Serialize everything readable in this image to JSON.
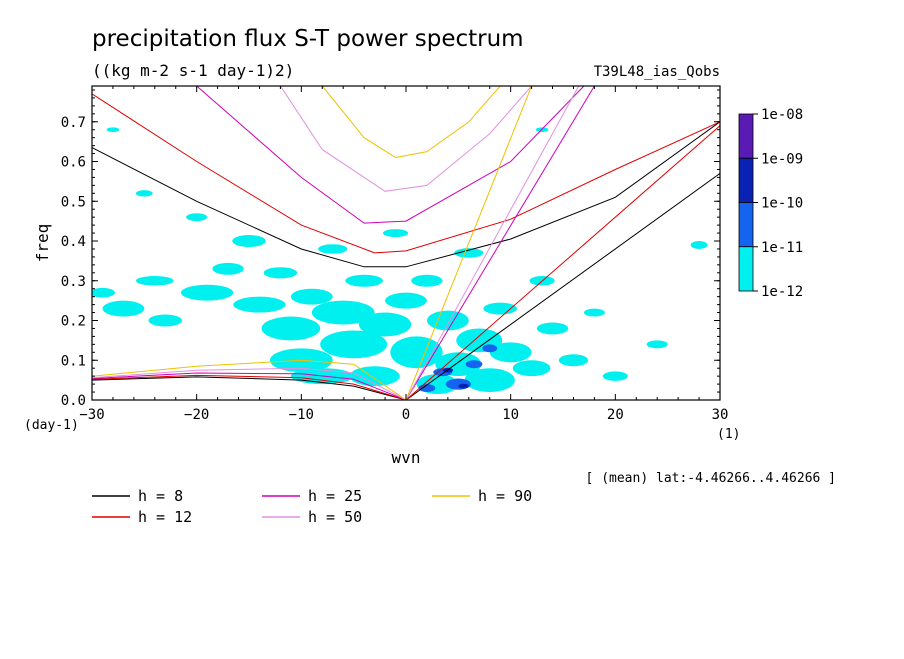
{
  "chart_data": {
    "type": "heatmap",
    "title": "precipitation flux S-T power spectrum",
    "subtitle": "((kg m-2 s-1 day-1)2)",
    "run_label": "T39L48_ias_Qobs",
    "xlabel": "wvn",
    "ylabel": "freq",
    "x_unit": "(1)",
    "y_unit": "(day-1)",
    "xlim": [
      -30,
      30
    ],
    "ylim": [
      0,
      0.79
    ],
    "xticks": [
      -30,
      -20,
      -10,
      0,
      10,
      20,
      30
    ],
    "yticks": [
      0.0,
      0.1,
      0.2,
      0.3,
      0.4,
      0.5,
      0.6,
      0.7
    ],
    "ytick_labels": [
      "0.0",
      "0.1",
      "0.2",
      "0.3",
      "0.4",
      "0.5",
      "0.6",
      "0.7"
    ],
    "footnote": "[ (mean) lat:-4.46266..4.46266 ]",
    "colorbar": {
      "labels": [
        "1e-08",
        "1e-09",
        "1e-10",
        "1e-11",
        "1e-12"
      ],
      "colors": [
        "#5a1ab4",
        "#0a22b4",
        "#1464f0",
        "#00f0f0"
      ]
    },
    "curves": [
      {
        "label": "h =  8",
        "h": 8,
        "color": "#000000"
      },
      {
        "label": "h = 12",
        "h": 12,
        "color": "#e00000"
      },
      {
        "label": "h = 25",
        "h": 25,
        "color": "#d000b8"
      },
      {
        "label": "h = 50",
        "h": 50,
        "color": "#e090e0"
      },
      {
        "label": "h = 90",
        "h": 90,
        "color": "#f0c000"
      }
    ],
    "kelvin_curves": [
      {
        "h": 8,
        "color": "#000000",
        "points": [
          [
            0,
            0
          ],
          [
            30,
            0.57
          ]
        ]
      },
      {
        "h": 12,
        "color": "#e00000",
        "points": [
          [
            0,
            0
          ],
          [
            30,
            0.69
          ]
        ]
      },
      {
        "h": 25,
        "color": "#d000b8",
        "points": [
          [
            0,
            0
          ],
          [
            18,
            0.79
          ]
        ]
      },
      {
        "h": 50,
        "color": "#e090e0",
        "points": [
          [
            0,
            0
          ],
          [
            16.5,
            0.79
          ]
        ]
      },
      {
        "h": 90,
        "color": "#f0c000",
        "points": [
          [
            0,
            0
          ],
          [
            12,
            0.79
          ]
        ]
      }
    ],
    "ig_curves": [
      {
        "h": 8,
        "color": "#000000",
        "points": [
          [
            -30,
            0.635
          ],
          [
            -20,
            0.5
          ],
          [
            -10,
            0.38
          ],
          [
            -4,
            0.335
          ],
          [
            0,
            0.335
          ],
          [
            10,
            0.405
          ],
          [
            20,
            0.51
          ],
          [
            30,
            0.7
          ]
        ]
      },
      {
        "h": 12,
        "color": "#e00000",
        "points": [
          [
            -30,
            0.77
          ],
          [
            -20,
            0.6
          ],
          [
            -10,
            0.44
          ],
          [
            -3,
            0.37
          ],
          [
            0,
            0.375
          ],
          [
            10,
            0.455
          ],
          [
            20,
            0.58
          ],
          [
            30,
            0.7
          ]
        ]
      },
      {
        "h": 25,
        "color": "#d000b8",
        "points": [
          [
            -20,
            0.79
          ],
          [
            -10,
            0.56
          ],
          [
            -4,
            0.445
          ],
          [
            0,
            0.45
          ],
          [
            10,
            0.6
          ],
          [
            17,
            0.79
          ]
        ]
      },
      {
        "h": 50,
        "color": "#e090e0",
        "points": [
          [
            -12,
            0.79
          ],
          [
            -8,
            0.63
          ],
          [
            -2,
            0.525
          ],
          [
            2,
            0.54
          ],
          [
            8,
            0.67
          ],
          [
            12,
            0.79
          ]
        ]
      },
      {
        "h": 90,
        "color": "#f0c000",
        "points": [
          [
            -8,
            0.79
          ],
          [
            -4,
            0.66
          ],
          [
            -1,
            0.61
          ],
          [
            2,
            0.625
          ],
          [
            6,
            0.7
          ],
          [
            9,
            0.79
          ]
        ]
      }
    ],
    "rossby_curves": [
      {
        "h": 8,
        "color": "#000000",
        "points": [
          [
            -30,
            0.05
          ],
          [
            -20,
            0.058
          ],
          [
            -10,
            0.05
          ],
          [
            -5,
            0.035
          ],
          [
            0,
            0
          ]
        ]
      },
      {
        "h": 12,
        "color": "#e00000",
        "points": [
          [
            -30,
            0.052
          ],
          [
            -20,
            0.062
          ],
          [
            -10,
            0.056
          ],
          [
            -5,
            0.04
          ],
          [
            0,
            0
          ]
        ]
      },
      {
        "h": 25,
        "color": "#d000b8",
        "points": [
          [
            -30,
            0.054
          ],
          [
            -20,
            0.068
          ],
          [
            -10,
            0.066
          ],
          [
            -5,
            0.052
          ],
          [
            0,
            0
          ]
        ]
      },
      {
        "h": 50,
        "color": "#e090e0",
        "points": [
          [
            -30,
            0.056
          ],
          [
            -20,
            0.075
          ],
          [
            -10,
            0.08
          ],
          [
            -5,
            0.068
          ],
          [
            0,
            0
          ]
        ]
      },
      {
        "h": 90,
        "color": "#f0c000",
        "points": [
          [
            -30,
            0.06
          ],
          [
            -20,
            0.085
          ],
          [
            -10,
            0.1
          ],
          [
            -5,
            0.09
          ],
          [
            0,
            0
          ]
        ]
      }
    ],
    "contour_blobs": [
      {
        "x": -29,
        "y": 0.27,
        "rx": 1.2,
        "ry": 0.012,
        "level": 4
      },
      {
        "x": -27,
        "y": 0.23,
        "rx": 2.0,
        "ry": 0.02,
        "level": 4
      },
      {
        "x": -24,
        "y": 0.3,
        "rx": 1.8,
        "ry": 0.012,
        "level": 4
      },
      {
        "x": -23,
        "y": 0.2,
        "rx": 1.6,
        "ry": 0.015,
        "level": 4
      },
      {
        "x": -20,
        "y": 0.46,
        "rx": 1.0,
        "ry": 0.01,
        "level": 4
      },
      {
        "x": -19,
        "y": 0.27,
        "rx": 2.5,
        "ry": 0.02,
        "level": 4
      },
      {
        "x": -17,
        "y": 0.33,
        "rx": 1.5,
        "ry": 0.015,
        "level": 4
      },
      {
        "x": -15,
        "y": 0.4,
        "rx": 1.6,
        "ry": 0.015,
        "level": 4
      },
      {
        "x": -14,
        "y": 0.24,
        "rx": 2.5,
        "ry": 0.02,
        "level": 4
      },
      {
        "x": -12,
        "y": 0.32,
        "rx": 1.6,
        "ry": 0.014,
        "level": 4
      },
      {
        "x": -11,
        "y": 0.18,
        "rx": 2.8,
        "ry": 0.03,
        "level": 4
      },
      {
        "x": -10,
        "y": 0.1,
        "rx": 3.0,
        "ry": 0.03,
        "level": 4
      },
      {
        "x": -9,
        "y": 0.26,
        "rx": 2.0,
        "ry": 0.02,
        "level": 4
      },
      {
        "x": -8,
        "y": 0.06,
        "rx": 3.0,
        "ry": 0.02,
        "level": 4
      },
      {
        "x": -7,
        "y": 0.38,
        "rx": 1.4,
        "ry": 0.012,
        "level": 4
      },
      {
        "x": -6,
        "y": 0.22,
        "rx": 3.0,
        "ry": 0.03,
        "level": 4
      },
      {
        "x": -5,
        "y": 0.14,
        "rx": 3.2,
        "ry": 0.035,
        "level": 4
      },
      {
        "x": -4,
        "y": 0.3,
        "rx": 1.8,
        "ry": 0.015,
        "level": 4
      },
      {
        "x": -3,
        "y": 0.06,
        "rx": 2.4,
        "ry": 0.025,
        "level": 4
      },
      {
        "x": -2,
        "y": 0.19,
        "rx": 2.5,
        "ry": 0.03,
        "level": 4
      },
      {
        "x": -1,
        "y": 0.42,
        "rx": 1.2,
        "ry": 0.01,
        "level": 4
      },
      {
        "x": 0,
        "y": 0.25,
        "rx": 2.0,
        "ry": 0.02,
        "level": 4
      },
      {
        "x": 1,
        "y": 0.12,
        "rx": 2.5,
        "ry": 0.04,
        "level": 4
      },
      {
        "x": 2,
        "y": 0.3,
        "rx": 1.5,
        "ry": 0.015,
        "level": 4
      },
      {
        "x": 3,
        "y": 0.04,
        "rx": 2.0,
        "ry": 0.025,
        "level": 4
      },
      {
        "x": 4,
        "y": 0.2,
        "rx": 2.0,
        "ry": 0.025,
        "level": 4
      },
      {
        "x": 5,
        "y": 0.09,
        "rx": 2.2,
        "ry": 0.03,
        "level": 4
      },
      {
        "x": 6,
        "y": 0.37,
        "rx": 1.4,
        "ry": 0.012,
        "level": 4
      },
      {
        "x": 7,
        "y": 0.15,
        "rx": 2.2,
        "ry": 0.03,
        "level": 4
      },
      {
        "x": 8,
        "y": 0.05,
        "rx": 2.4,
        "ry": 0.03,
        "level": 4
      },
      {
        "x": 9,
        "y": 0.23,
        "rx": 1.6,
        "ry": 0.015,
        "level": 4
      },
      {
        "x": 10,
        "y": 0.12,
        "rx": 2.0,
        "ry": 0.025,
        "level": 4
      },
      {
        "x": 12,
        "y": 0.08,
        "rx": 1.8,
        "ry": 0.02,
        "level": 4
      },
      {
        "x": 13,
        "y": 0.3,
        "rx": 1.2,
        "ry": 0.012,
        "level": 4
      },
      {
        "x": 14,
        "y": 0.18,
        "rx": 1.5,
        "ry": 0.015,
        "level": 4
      },
      {
        "x": 16,
        "y": 0.1,
        "rx": 1.4,
        "ry": 0.015,
        "level": 4
      },
      {
        "x": 18,
        "y": 0.22,
        "rx": 1.0,
        "ry": 0.01,
        "level": 4
      },
      {
        "x": 20,
        "y": 0.06,
        "rx": 1.2,
        "ry": 0.012,
        "level": 4
      },
      {
        "x": 24,
        "y": 0.14,
        "rx": 1.0,
        "ry": 0.01,
        "level": 4
      },
      {
        "x": 28,
        "y": 0.39,
        "rx": 0.8,
        "ry": 0.01,
        "level": 4
      },
      {
        "x": -28,
        "y": 0.68,
        "rx": 0.6,
        "ry": 0.006,
        "level": 4
      },
      {
        "x": -25,
        "y": 0.52,
        "rx": 0.8,
        "ry": 0.008,
        "level": 4
      },
      {
        "x": 13,
        "y": 0.68,
        "rx": 0.6,
        "ry": 0.006,
        "level": 4
      },
      {
        "x": 3.5,
        "y": 0.07,
        "rx": 0.9,
        "ry": 0.01,
        "level": 3
      },
      {
        "x": 5,
        "y": 0.04,
        "rx": 1.2,
        "ry": 0.014,
        "level": 3
      },
      {
        "x": 6.5,
        "y": 0.09,
        "rx": 0.8,
        "ry": 0.01,
        "level": 3
      },
      {
        "x": 8,
        "y": 0.13,
        "rx": 0.7,
        "ry": 0.01,
        "level": 3
      },
      {
        "x": 2,
        "y": 0.03,
        "rx": 0.8,
        "ry": 0.01,
        "level": 3
      },
      {
        "x": 4,
        "y": 0.075,
        "rx": 0.5,
        "ry": 0.006,
        "level": 2
      },
      {
        "x": 5.5,
        "y": 0.035,
        "rx": 0.5,
        "ry": 0.006,
        "level": 2
      }
    ]
  }
}
